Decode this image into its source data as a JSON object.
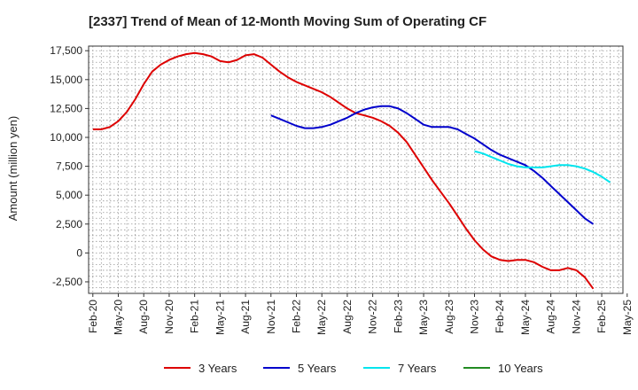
{
  "chart_data": {
    "type": "line",
    "title": "[2337]  Trend of Mean of 12-Month Moving Sum of Operating CF",
    "xlabel": "",
    "ylabel": "Amount (million yen)",
    "ylim": [
      -3500,
      17900
    ],
    "yticks": [
      -2500,
      0,
      2500,
      5000,
      7500,
      10000,
      12500,
      15000,
      17500
    ],
    "ytick_labels": [
      "-2,500",
      "0",
      "2,500",
      "5,000",
      "7,500",
      "10,000",
      "12,500",
      "15,000",
      "17,500"
    ],
    "xticks": [
      "Feb-20",
      "May-20",
      "Aug-20",
      "Nov-20",
      "Feb-21",
      "May-21",
      "Aug-21",
      "Nov-21",
      "Feb-22",
      "May-22",
      "Aug-22",
      "Nov-22",
      "Feb-23",
      "May-23",
      "Aug-23",
      "Nov-23",
      "Feb-24",
      "May-24",
      "Aug-24",
      "Nov-24",
      "Feb-25",
      "May-25"
    ],
    "x_start": "Feb-20",
    "months_total": 63,
    "series": [
      {
        "name": "3 Years",
        "color": "#dd0000",
        "start_month_index": 0,
        "values": [
          10700,
          10700,
          10900,
          11400,
          12200,
          13300,
          14600,
          15700,
          16300,
          16700,
          17000,
          17200,
          17300,
          17200,
          17000,
          16600,
          16500,
          16700,
          17100,
          17200,
          16900,
          16300,
          15700,
          15200,
          14800,
          14500,
          14200,
          13900,
          13500,
          13000,
          12500,
          12100,
          11900,
          11700,
          11400,
          11000,
          10400,
          9600,
          8500,
          7400,
          6300,
          5300,
          4300,
          3200,
          2100,
          1100,
          300,
          -300,
          -600,
          -700,
          -600,
          -600,
          -800,
          -1200,
          -1500,
          -1500,
          -1300,
          -1500,
          -2100,
          -3100
        ]
      },
      {
        "name": "5 Years",
        "color": "#0000cc",
        "start_month_index": 21,
        "values": [
          11900,
          11600,
          11300,
          11000,
          10800,
          10800,
          10900,
          11100,
          11400,
          11700,
          12100,
          12400,
          12600,
          12700,
          12700,
          12500,
          12100,
          11600,
          11100,
          10900,
          10900,
          10900,
          10700,
          10300,
          9900,
          9400,
          8900,
          8500,
          8200,
          7900,
          7600,
          7100,
          6500,
          5800,
          5100,
          4400,
          3700,
          3000,
          2500
        ]
      },
      {
        "name": "7 Years",
        "color": "#00e5ee",
        "start_month_index": 45,
        "values": [
          8800,
          8600,
          8300,
          8000,
          7700,
          7500,
          7400,
          7400,
          7400,
          7500,
          7600,
          7600,
          7500,
          7300,
          7000,
          6600,
          6100
        ]
      },
      {
        "name": "10 Years",
        "color": "#228b22",
        "start_month_index": 0,
        "values": []
      }
    ],
    "legend_position": "bottom",
    "grid": true
  }
}
